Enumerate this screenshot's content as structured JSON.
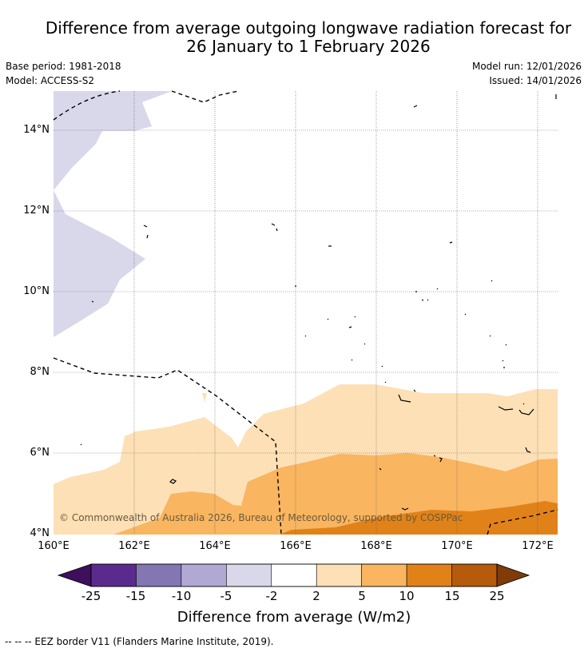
{
  "title_line1": "Difference from average outgoing longwave radiation forecast for",
  "title_line2": "26 January to 1 February 2026",
  "base_period": "Base period: 1981-2018",
  "model": "Model: ACCESS-S2",
  "model_run": "Model run: 12/01/2026",
  "issued": "Issued: 14/01/2026",
  "latitude_labels": [
    "14°N",
    "12°N",
    "10°N",
    "8°N",
    "6°N",
    "4°N"
  ],
  "longitude_labels": [
    "160°E",
    "162°E",
    "164°E",
    "166°E",
    "168°E",
    "170°E",
    "172°E"
  ],
  "colorbar": {
    "ticks": [
      "-25",
      "-15",
      "-10",
      "-5",
      "-2",
      "2",
      "5",
      "10",
      "15",
      "25"
    ],
    "colors": [
      "#3d0f5c",
      "#5b2a8e",
      "#8476b2",
      "#b1a9d4",
      "#d8d8ea",
      "#ffffff",
      "#fde0b6",
      "#f9b560",
      "#e18219",
      "#b55b0b",
      "#7f3b08"
    ],
    "label": "Difference from average (W/m2)"
  },
  "copyright": "© Commonwealth of Australia 2026, Bureau of Meteorology, supported by COSPPac",
  "footer": "--  --  -- EEZ border V11 (Flanders Marine Institute, 2019)."
}
